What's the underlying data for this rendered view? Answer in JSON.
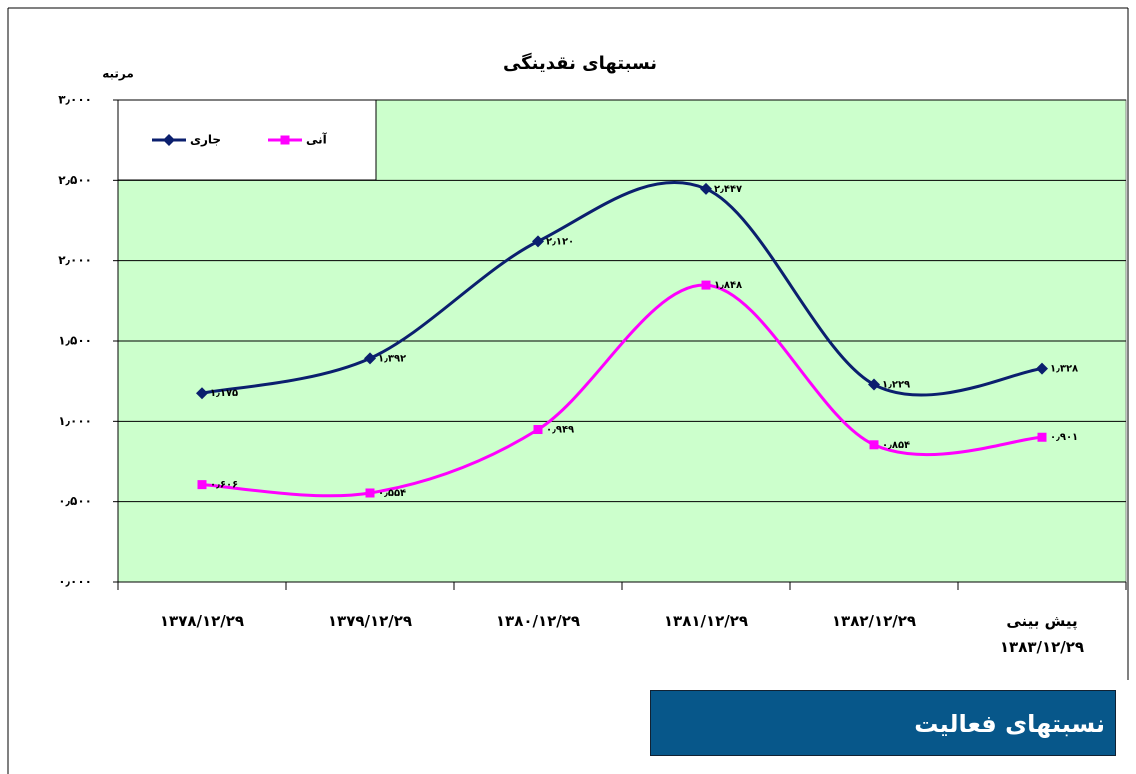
{
  "chart_data": {
    "type": "line",
    "title": "نسبتهای نقدینگی",
    "y_label": "مرتبه",
    "categories": [
      "۱۳۷۸/۱۲/۲۹",
      "۱۳۷۹/۱۲/۲۹",
      "۱۳۸۰/۱۲/۲۹",
      "۱۳۸۱/۱۲/۲۹",
      "۱۳۸۲/۱۲/۲۹",
      "پیش بینی\n۱۳۸۳/۱۲/۲۹"
    ],
    "series": [
      {
        "name": "جاری",
        "color": "#0b1f6e",
        "marker": "diamond",
        "values": [
          1.175,
          1.392,
          2.12,
          2.447,
          1.229,
          1.328
        ],
        "value_labels": [
          "۱٫۱۷۵",
          "۱٫۳۹۲",
          "۲٫۱۲۰",
          "۲٫۴۴۷",
          "۱٫۲۲۹",
          "۱٫۳۲۸"
        ]
      },
      {
        "name": "آنی",
        "color": "#ff00ff",
        "marker": "square",
        "values": [
          0.606,
          0.554,
          0.949,
          1.848,
          0.854,
          0.901
        ],
        "value_labels": [
          "۰٫۶۰۶",
          "۰٫۵۵۴",
          "۰٫۹۴۹",
          "۱٫۸۴۸",
          "۰٫۸۵۴",
          "۰٫۹۰۱"
        ]
      }
    ],
    "ylim": [
      0,
      3
    ],
    "yticks": [
      {
        "value": 0,
        "label": "۰٫۰۰۰"
      },
      {
        "value": 0.5,
        "label": "۰٫۵۰۰"
      },
      {
        "value": 1,
        "label": "۱٫۰۰۰"
      },
      {
        "value": 1.5,
        "label": "۱٫۵۰۰"
      },
      {
        "value": 2,
        "label": "۲٫۰۰۰"
      },
      {
        "value": 2.5,
        "label": "۲٫۵۰۰"
      },
      {
        "value": 3,
        "label": "۳٫۰۰۰"
      }
    ],
    "grid": true,
    "smooth": true,
    "plot_background": "#ccffcc",
    "legend": "upper left"
  },
  "section_heading": "نسبتهای فعالیت"
}
